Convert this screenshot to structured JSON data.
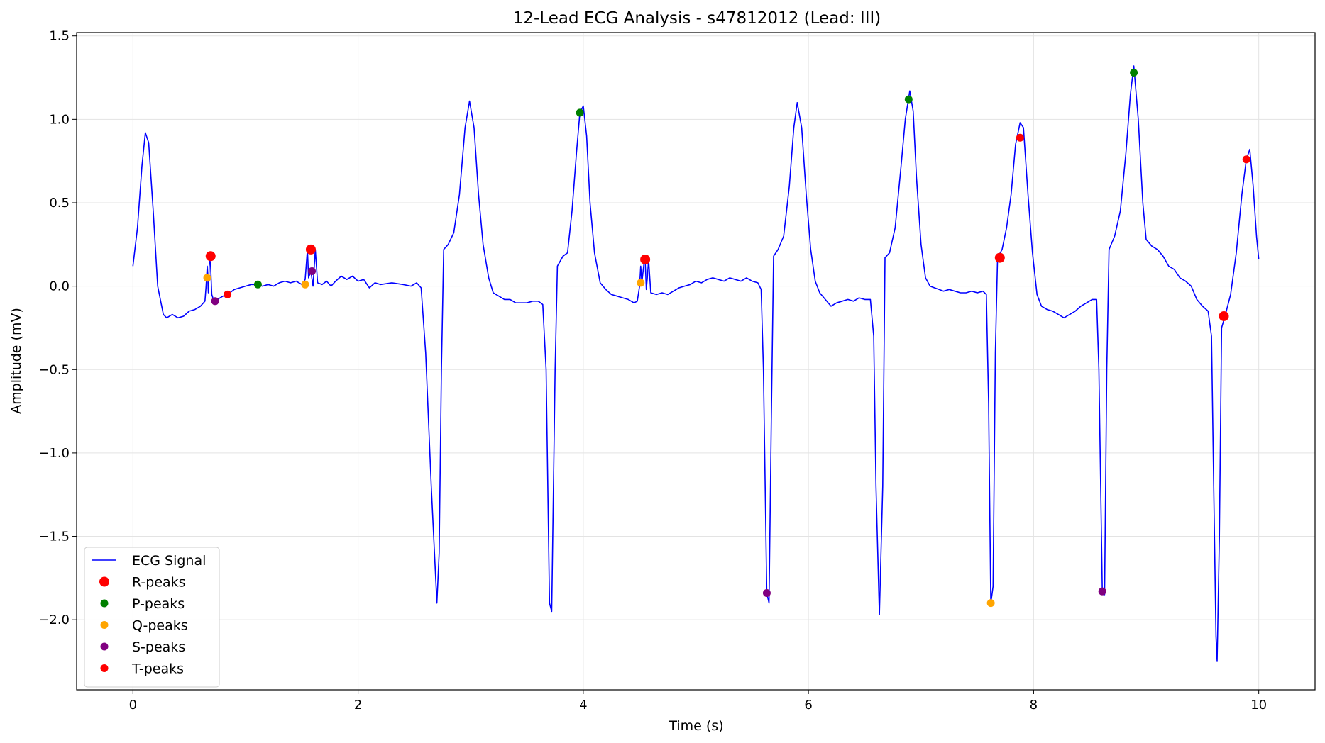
{
  "chart_data": {
    "type": "line",
    "title": "12-Lead ECG Analysis - s47812012 (Lead: III)",
    "xlabel": "Time (s)",
    "ylabel": "Amplitude (mV)",
    "xlim": [
      -0.5,
      10.5
    ],
    "ylim": [
      -2.42,
      1.52
    ],
    "xticks": [
      0,
      2,
      4,
      6,
      8,
      10
    ],
    "xtick_labels": [
      "0",
      "2",
      "4",
      "6",
      "8",
      "10"
    ],
    "yticks": [
      1.5,
      1.0,
      0.5,
      0.0,
      -0.5,
      -1.0,
      -1.5,
      -2.0
    ],
    "ytick_labels": [
      "1.5",
      "1.0",
      "0.5",
      "0.0",
      "−0.5",
      "−1.0",
      "−1.5",
      "−2.0"
    ],
    "grid": true,
    "legend_position": "lower-left",
    "series": [
      {
        "name": "ECG Signal",
        "kind": "line",
        "color": "#0000ff",
        "points": [
          [
            0.0,
            0.12
          ],
          [
            0.04,
            0.35
          ],
          [
            0.08,
            0.72
          ],
          [
            0.11,
            0.92
          ],
          [
            0.14,
            0.86
          ],
          [
            0.18,
            0.45
          ],
          [
            0.22,
            0.0
          ],
          [
            0.27,
            -0.17
          ],
          [
            0.3,
            -0.19
          ],
          [
            0.35,
            -0.17
          ],
          [
            0.4,
            -0.19
          ],
          [
            0.45,
            -0.18
          ],
          [
            0.5,
            -0.15
          ],
          [
            0.55,
            -0.14
          ],
          [
            0.6,
            -0.12
          ],
          [
            0.64,
            -0.09
          ],
          [
            0.65,
            0.0
          ],
          [
            0.66,
            0.12
          ],
          [
            0.67,
            -0.04
          ],
          [
            0.68,
            0.18
          ],
          [
            0.69,
            0.12
          ],
          [
            0.7,
            -0.05
          ],
          [
            0.72,
            -0.09
          ],
          [
            0.75,
            -0.08
          ],
          [
            0.8,
            -0.06
          ],
          [
            0.84,
            -0.05
          ],
          [
            0.9,
            -0.02
          ],
          [
            0.95,
            -0.01
          ],
          [
            1.0,
            0.0
          ],
          [
            1.05,
            0.01
          ],
          [
            1.1,
            0.01
          ],
          [
            1.15,
            0.0
          ],
          [
            1.2,
            0.01
          ],
          [
            1.25,
            0.0
          ],
          [
            1.3,
            0.02
          ],
          [
            1.35,
            0.03
          ],
          [
            1.4,
            0.02
          ],
          [
            1.45,
            0.03
          ],
          [
            1.5,
            0.01
          ],
          [
            1.53,
            0.04
          ],
          [
            1.55,
            0.22
          ],
          [
            1.56,
            0.05
          ],
          [
            1.58,
            0.09
          ],
          [
            1.6,
            0.0
          ],
          [
            1.62,
            0.22
          ],
          [
            1.64,
            0.02
          ],
          [
            1.68,
            0.01
          ],
          [
            1.72,
            0.03
          ],
          [
            1.76,
            0.0
          ],
          [
            1.8,
            0.03
          ],
          [
            1.85,
            0.06
          ],
          [
            1.9,
            0.04
          ],
          [
            1.95,
            0.06
          ],
          [
            2.0,
            0.03
          ],
          [
            2.05,
            0.04
          ],
          [
            2.1,
            -0.01
          ],
          [
            2.15,
            0.02
          ],
          [
            2.2,
            0.01
          ],
          [
            2.3,
            0.02
          ],
          [
            2.4,
            0.01
          ],
          [
            2.47,
            0.0
          ],
          [
            2.52,
            0.02
          ],
          [
            2.56,
            -0.01
          ],
          [
            2.6,
            -0.4
          ],
          [
            2.65,
            -1.2
          ],
          [
            2.7,
            -1.9
          ],
          [
            2.72,
            -1.6
          ],
          [
            2.74,
            -0.5
          ],
          [
            2.76,
            0.22
          ],
          [
            2.8,
            0.25
          ],
          [
            2.85,
            0.32
          ],
          [
            2.9,
            0.55
          ],
          [
            2.95,
            0.95
          ],
          [
            2.99,
            1.11
          ],
          [
            3.03,
            0.95
          ],
          [
            3.07,
            0.55
          ],
          [
            3.11,
            0.25
          ],
          [
            3.16,
            0.05
          ],
          [
            3.2,
            -0.04
          ],
          [
            3.25,
            -0.06
          ],
          [
            3.3,
            -0.08
          ],
          [
            3.35,
            -0.08
          ],
          [
            3.4,
            -0.1
          ],
          [
            3.45,
            -0.1
          ],
          [
            3.5,
            -0.1
          ],
          [
            3.55,
            -0.09
          ],
          [
            3.6,
            -0.09
          ],
          [
            3.64,
            -0.11
          ],
          [
            3.67,
            -0.5
          ],
          [
            3.7,
            -1.9
          ],
          [
            3.72,
            -1.95
          ],
          [
            3.75,
            -0.5
          ],
          [
            3.77,
            0.12
          ],
          [
            3.82,
            0.18
          ],
          [
            3.86,
            0.2
          ],
          [
            3.9,
            0.45
          ],
          [
            3.94,
            0.8
          ],
          [
            3.97,
            1.04
          ],
          [
            4.0,
            1.08
          ],
          [
            4.03,
            0.9
          ],
          [
            4.06,
            0.5
          ],
          [
            4.1,
            0.2
          ],
          [
            4.15,
            0.02
          ],
          [
            4.2,
            -0.02
          ],
          [
            4.25,
            -0.05
          ],
          [
            4.3,
            -0.06
          ],
          [
            4.35,
            -0.07
          ],
          [
            4.4,
            -0.08
          ],
          [
            4.45,
            -0.1
          ],
          [
            4.48,
            -0.09
          ],
          [
            4.5,
            0.0
          ],
          [
            4.51,
            0.12
          ],
          [
            4.52,
            0.02
          ],
          [
            4.54,
            0.14
          ],
          [
            4.55,
            0.15
          ],
          [
            4.56,
            -0.02
          ],
          [
            4.57,
            0.06
          ],
          [
            4.58,
            0.16
          ],
          [
            4.6,
            -0.04
          ],
          [
            4.65,
            -0.05
          ],
          [
            4.7,
            -0.04
          ],
          [
            4.75,
            -0.05
          ],
          [
            4.8,
            -0.03
          ],
          [
            4.85,
            -0.01
          ],
          [
            4.9,
            0.0
          ],
          [
            4.95,
            0.01
          ],
          [
            5.0,
            0.03
          ],
          [
            5.05,
            0.02
          ],
          [
            5.1,
            0.04
          ],
          [
            5.15,
            0.05
          ],
          [
            5.2,
            0.04
          ],
          [
            5.25,
            0.03
          ],
          [
            5.3,
            0.05
          ],
          [
            5.35,
            0.04
          ],
          [
            5.4,
            0.03
          ],
          [
            5.45,
            0.05
          ],
          [
            5.5,
            0.03
          ],
          [
            5.55,
            0.02
          ],
          [
            5.58,
            -0.02
          ],
          [
            5.6,
            -0.5
          ],
          [
            5.63,
            -1.84
          ],
          [
            5.65,
            -1.9
          ],
          [
            5.67,
            -0.8
          ],
          [
            5.69,
            0.18
          ],
          [
            5.73,
            0.22
          ],
          [
            5.78,
            0.3
          ],
          [
            5.83,
            0.6
          ],
          [
            5.87,
            0.95
          ],
          [
            5.9,
            1.1
          ],
          [
            5.94,
            0.95
          ],
          [
            5.98,
            0.55
          ],
          [
            6.02,
            0.22
          ],
          [
            6.06,
            0.03
          ],
          [
            6.1,
            -0.04
          ],
          [
            6.15,
            -0.08
          ],
          [
            6.2,
            -0.12
          ],
          [
            6.25,
            -0.1
          ],
          [
            6.3,
            -0.09
          ],
          [
            6.35,
            -0.08
          ],
          [
            6.4,
            -0.09
          ],
          [
            6.45,
            -0.07
          ],
          [
            6.5,
            -0.08
          ],
          [
            6.55,
            -0.08
          ],
          [
            6.58,
            -0.3
          ],
          [
            6.6,
            -1.2
          ],
          [
            6.63,
            -1.97
          ],
          [
            6.66,
            -1.2
          ],
          [
            6.68,
            0.17
          ],
          [
            6.72,
            0.2
          ],
          [
            6.77,
            0.35
          ],
          [
            6.82,
            0.7
          ],
          [
            6.86,
            1.0
          ],
          [
            6.9,
            1.17
          ],
          [
            6.93,
            1.05
          ],
          [
            6.96,
            0.65
          ],
          [
            7.0,
            0.25
          ],
          [
            7.04,
            0.05
          ],
          [
            7.08,
            0.0
          ],
          [
            7.12,
            -0.01
          ],
          [
            7.16,
            -0.02
          ],
          [
            7.2,
            -0.03
          ],
          [
            7.25,
            -0.02
          ],
          [
            7.3,
            -0.03
          ],
          [
            7.35,
            -0.04
          ],
          [
            7.4,
            -0.04
          ],
          [
            7.45,
            -0.03
          ],
          [
            7.5,
            -0.04
          ],
          [
            7.55,
            -0.03
          ],
          [
            7.58,
            -0.05
          ],
          [
            7.6,
            -0.7
          ],
          [
            7.62,
            -1.9
          ],
          [
            7.64,
            -1.8
          ],
          [
            7.66,
            -0.4
          ],
          [
            7.68,
            0.17
          ],
          [
            7.72,
            0.22
          ],
          [
            7.76,
            0.35
          ],
          [
            7.8,
            0.55
          ],
          [
            7.84,
            0.85
          ],
          [
            7.88,
            0.98
          ],
          [
            7.91,
            0.95
          ],
          [
            7.95,
            0.55
          ],
          [
            7.99,
            0.2
          ],
          [
            8.03,
            -0.05
          ],
          [
            8.07,
            -0.12
          ],
          [
            8.12,
            -0.14
          ],
          [
            8.17,
            -0.15
          ],
          [
            8.22,
            -0.17
          ],
          [
            8.27,
            -0.19
          ],
          [
            8.32,
            -0.17
          ],
          [
            8.37,
            -0.15
          ],
          [
            8.42,
            -0.12
          ],
          [
            8.47,
            -0.1
          ],
          [
            8.52,
            -0.08
          ],
          [
            8.56,
            -0.08
          ],
          [
            8.58,
            -0.5
          ],
          [
            8.61,
            -1.83
          ],
          [
            8.63,
            -1.85
          ],
          [
            8.65,
            -0.5
          ],
          [
            8.67,
            0.22
          ],
          [
            8.72,
            0.3
          ],
          [
            8.77,
            0.45
          ],
          [
            8.82,
            0.8
          ],
          [
            8.86,
            1.15
          ],
          [
            8.89,
            1.32
          ],
          [
            8.93,
            1.0
          ],
          [
            8.97,
            0.5
          ],
          [
            9.0,
            0.28
          ],
          [
            9.05,
            0.24
          ],
          [
            9.1,
            0.22
          ],
          [
            9.15,
            0.18
          ],
          [
            9.2,
            0.12
          ],
          [
            9.25,
            0.1
          ],
          [
            9.3,
            0.05
          ],
          [
            9.35,
            0.03
          ],
          [
            9.4,
            0.0
          ],
          [
            9.45,
            -0.08
          ],
          [
            9.5,
            -0.12
          ],
          [
            9.55,
            -0.15
          ],
          [
            9.58,
            -0.3
          ],
          [
            9.6,
            -1.2
          ],
          [
            9.62,
            -2.1
          ],
          [
            9.63,
            -2.25
          ],
          [
            9.65,
            -1.5
          ],
          [
            9.67,
            -0.25
          ],
          [
            9.7,
            -0.18
          ],
          [
            9.75,
            -0.05
          ],
          [
            9.8,
            0.2
          ],
          [
            9.85,
            0.55
          ],
          [
            9.89,
            0.76
          ],
          [
            9.92,
            0.82
          ],
          [
            9.95,
            0.6
          ],
          [
            9.98,
            0.3
          ],
          [
            10.0,
            0.16
          ]
        ]
      },
      {
        "name": "R-peaks",
        "kind": "points",
        "color": "#ff0000",
        "size": 7,
        "points": [
          [
            0.69,
            0.18
          ],
          [
            1.58,
            0.22
          ],
          [
            4.55,
            0.16
          ],
          [
            7.7,
            0.17
          ],
          [
            9.69,
            -0.18
          ]
        ]
      },
      {
        "name": "P-peaks",
        "kind": "points",
        "color": "#008000",
        "size": 5.5,
        "points": [
          [
            1.11,
            0.01
          ],
          [
            3.97,
            1.04
          ],
          [
            6.89,
            1.12
          ],
          [
            8.89,
            1.28
          ]
        ]
      },
      {
        "name": "Q-peaks",
        "kind": "points",
        "color": "#ffa500",
        "size": 5.5,
        "points": [
          [
            0.66,
            0.05
          ],
          [
            1.53,
            0.01
          ],
          [
            4.51,
            0.02
          ],
          [
            7.62,
            -1.9
          ]
        ]
      },
      {
        "name": "S-peaks",
        "kind": "points",
        "color": "#800080",
        "size": 5.5,
        "points": [
          [
            0.73,
            -0.09
          ],
          [
            1.59,
            0.09
          ],
          [
            5.63,
            -1.84
          ],
          [
            8.61,
            -1.83
          ]
        ]
      },
      {
        "name": "T-peaks",
        "kind": "points",
        "color": "#ff0000",
        "size": 5.5,
        "points": [
          [
            0.84,
            -0.05
          ],
          [
            7.88,
            0.89
          ],
          [
            9.89,
            0.76
          ]
        ]
      }
    ]
  }
}
